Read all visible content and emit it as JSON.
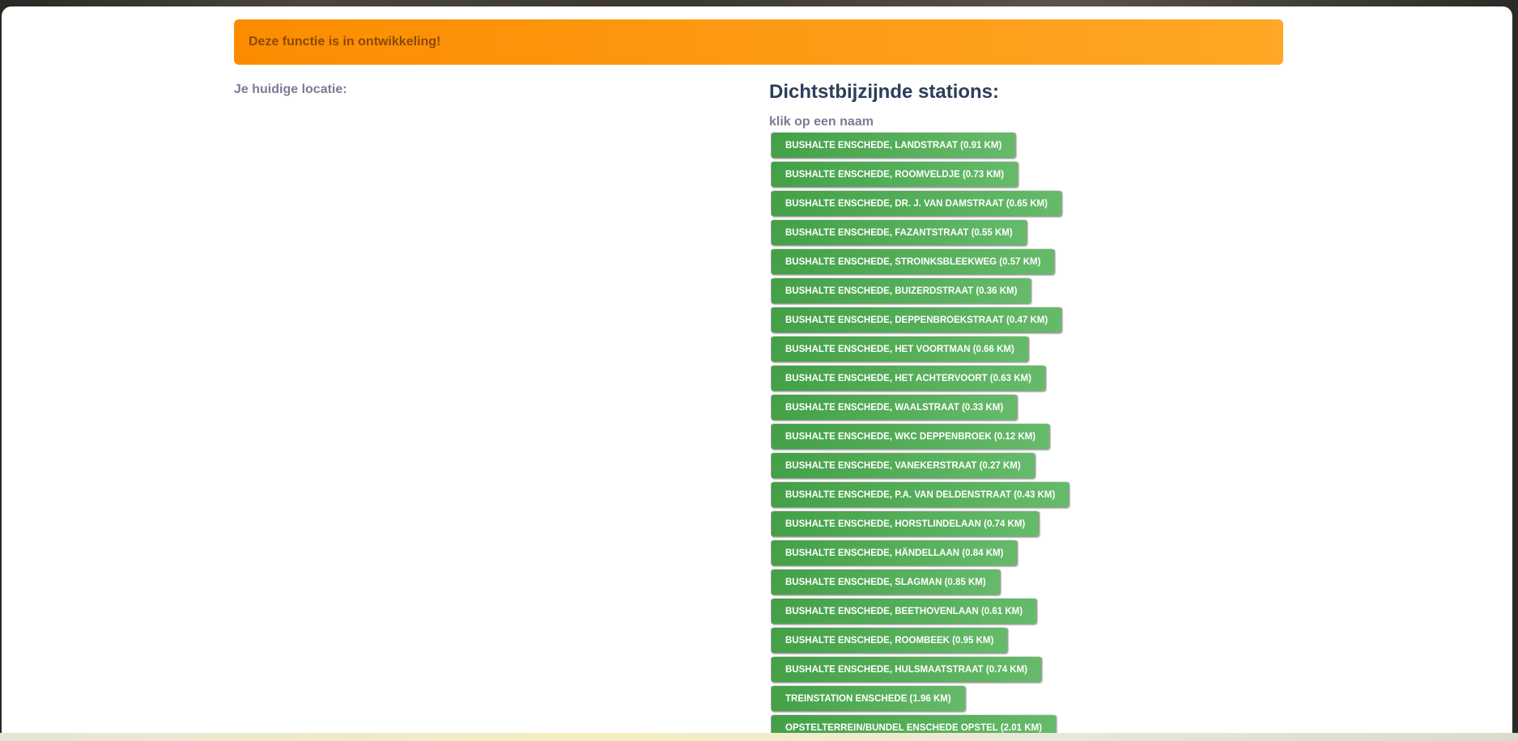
{
  "alert": {
    "text": "Deze functie is in ontwikkeling!",
    "color": "#fb8c00"
  },
  "location": {
    "label": "Je huidige locatie:"
  },
  "stations": {
    "heading": "Dichtstbijzijnde stations:",
    "hint": "klik op een naam",
    "button_color": "#4caf50",
    "items": [
      "BUSHALTE ENSCHEDE, LANDSTRAAT (0.91 KM)",
      "BUSHALTE ENSCHEDE, ROOMVELDJE (0.73 KM)",
      "BUSHALTE ENSCHEDE, DR. J. VAN DAMSTRAAT (0.65 KM)",
      "BUSHALTE ENSCHEDE, FAZANTSTRAAT (0.55 KM)",
      "BUSHALTE ENSCHEDE, STROINKSBLEEKWEG (0.57 KM)",
      "BUSHALTE ENSCHEDE, BUIZERDSTRAAT (0.36 KM)",
      "BUSHALTE ENSCHEDE, DEPPENBROEKSTRAAT (0.47 KM)",
      "BUSHALTE ENSCHEDE, HET VOORTMAN (0.66 KM)",
      "BUSHALTE ENSCHEDE, HET ACHTERVOORT (0.63 KM)",
      "BUSHALTE ENSCHEDE, WAALSTRAAT (0.33 KM)",
      "BUSHALTE ENSCHEDE, WKC DEPPENBROEK (0.12 KM)",
      "BUSHALTE ENSCHEDE, VANEKERSTRAAT (0.27 KM)",
      "BUSHALTE ENSCHEDE, P.A. VAN DELDENSTRAAT (0.43 KM)",
      "BUSHALTE ENSCHEDE, HORSTLINDELAAN (0.74 KM)",
      "BUSHALTE ENSCHEDE, HÄNDELLAAN (0.84 KM)",
      "BUSHALTE ENSCHEDE, SLAGMAN (0.85 KM)",
      "BUSHALTE ENSCHEDE, BEETHOVENLAAN (0.61 KM)",
      "BUSHALTE ENSCHEDE, ROOMBEEK (0.95 KM)",
      "BUSHALTE ENSCHEDE, HULSMAATSTRAAT (0.74 KM)",
      "TREINSTATION ENSCHEDE (1.96 KM)",
      "OPSTELTERREIN/BUNDEL ENSCHEDE OPSTEL (2.01 KM)"
    ]
  }
}
